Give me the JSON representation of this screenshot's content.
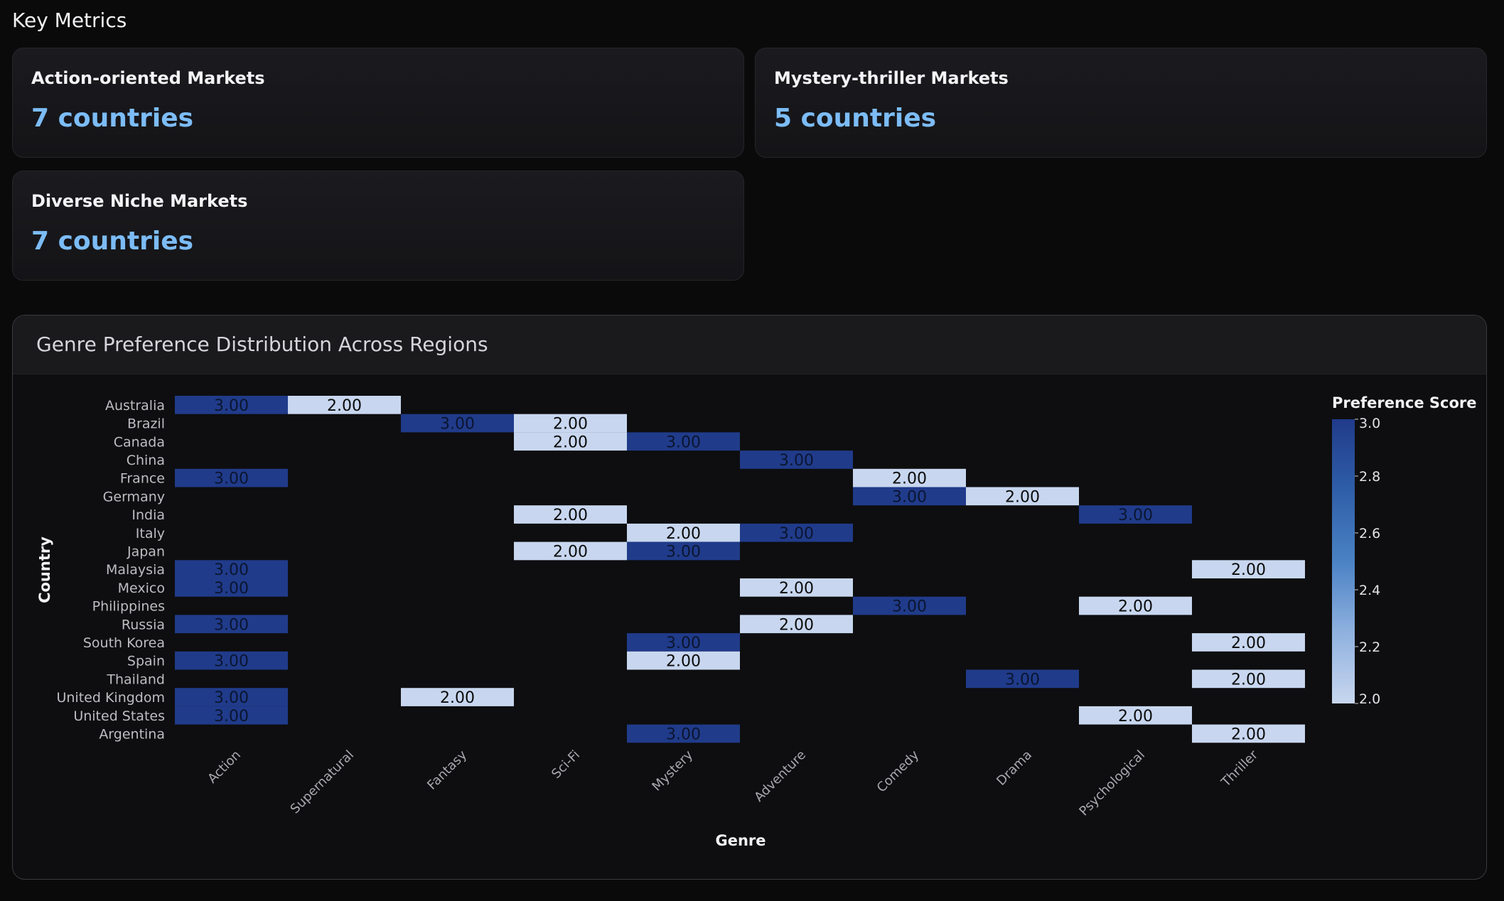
{
  "section": {
    "title": "Key Metrics"
  },
  "metrics": [
    {
      "label": "Action-oriented Markets",
      "value": "7 countries"
    },
    {
      "label": "Mystery-thriller Markets",
      "value": "5 countries"
    },
    {
      "label": "Diverse Niche Markets",
      "value": "7 countries"
    }
  ],
  "chart": {
    "panel_title": "Genre Preference Distribution Across Regions"
  },
  "colors": {
    "accent": "#7cbcf6",
    "scale_low": "#c8d7ef",
    "scale_high": "#203b8a"
  },
  "chart_data": {
    "type": "heatmap",
    "title": "Genre Preference Distribution Across Regions",
    "xlabel": "Genre",
    "ylabel": "Country",
    "colorbar_title": "Preference Score",
    "colorbar_range": [
      2.0,
      3.0
    ],
    "colorbar_ticks": [
      "3.0",
      "2.8",
      "2.6",
      "2.4",
      "2.2",
      "2.0"
    ],
    "x_categories": [
      "Action",
      "Supernatural",
      "Fantasy",
      "Sci-Fi",
      "Mystery",
      "Adventure",
      "Comedy",
      "Drama",
      "Psychological",
      "Thriller"
    ],
    "y_categories": [
      "Australia",
      "Brazil",
      "Canada",
      "China",
      "France",
      "Germany",
      "India",
      "Italy",
      "Japan",
      "Malaysia",
      "Mexico",
      "Philippines",
      "Russia",
      "South Korea",
      "Spain",
      "Thailand",
      "United Kingdom",
      "United States",
      "Argentina"
    ],
    "cells": [
      {
        "country": "Australia",
        "genre": "Action",
        "value": 3.0,
        "label": "3.00"
      },
      {
        "country": "Australia",
        "genre": "Supernatural",
        "value": 2.0,
        "label": "2.00"
      },
      {
        "country": "Brazil",
        "genre": "Fantasy",
        "value": 3.0,
        "label": "3.00"
      },
      {
        "country": "Brazil",
        "genre": "Sci-Fi",
        "value": 2.0,
        "label": "2.00"
      },
      {
        "country": "Canada",
        "genre": "Sci-Fi",
        "value": 2.0,
        "label": "2.00"
      },
      {
        "country": "Canada",
        "genre": "Mystery",
        "value": 3.0,
        "label": "3.00"
      },
      {
        "country": "China",
        "genre": "Adventure",
        "value": 3.0,
        "label": "3.00"
      },
      {
        "country": "France",
        "genre": "Action",
        "value": 3.0,
        "label": "3.00"
      },
      {
        "country": "France",
        "genre": "Comedy",
        "value": 2.0,
        "label": "2.00"
      },
      {
        "country": "Germany",
        "genre": "Comedy",
        "value": 3.0,
        "label": "3.00"
      },
      {
        "country": "Germany",
        "genre": "Drama",
        "value": 2.0,
        "label": "2.00"
      },
      {
        "country": "India",
        "genre": "Sci-Fi",
        "value": 2.0,
        "label": "2.00"
      },
      {
        "country": "India",
        "genre": "Psychological",
        "value": 3.0,
        "label": "3.00"
      },
      {
        "country": "Italy",
        "genre": "Mystery",
        "value": 2.0,
        "label": "2.00"
      },
      {
        "country": "Italy",
        "genre": "Adventure",
        "value": 3.0,
        "label": "3.00"
      },
      {
        "country": "Japan",
        "genre": "Sci-Fi",
        "value": 2.0,
        "label": "2.00"
      },
      {
        "country": "Japan",
        "genre": "Mystery",
        "value": 3.0,
        "label": "3.00"
      },
      {
        "country": "Malaysia",
        "genre": "Action",
        "value": 3.0,
        "label": "3.00"
      },
      {
        "country": "Malaysia",
        "genre": "Thriller",
        "value": 2.0,
        "label": "2.00"
      },
      {
        "country": "Mexico",
        "genre": "Action",
        "value": 3.0,
        "label": "3.00"
      },
      {
        "country": "Mexico",
        "genre": "Adventure",
        "value": 2.0,
        "label": "2.00"
      },
      {
        "country": "Philippines",
        "genre": "Comedy",
        "value": 3.0,
        "label": "3.00"
      },
      {
        "country": "Philippines",
        "genre": "Psychological",
        "value": 2.0,
        "label": "2.00"
      },
      {
        "country": "Russia",
        "genre": "Action",
        "value": 3.0,
        "label": "3.00"
      },
      {
        "country": "Russia",
        "genre": "Adventure",
        "value": 2.0,
        "label": "2.00"
      },
      {
        "country": "South Korea",
        "genre": "Mystery",
        "value": 3.0,
        "label": "3.00"
      },
      {
        "country": "South Korea",
        "genre": "Thriller",
        "value": 2.0,
        "label": "2.00"
      },
      {
        "country": "Spain",
        "genre": "Action",
        "value": 3.0,
        "label": "3.00"
      },
      {
        "country": "Spain",
        "genre": "Mystery",
        "value": 2.0,
        "label": "2.00"
      },
      {
        "country": "Thailand",
        "genre": "Drama",
        "value": 3.0,
        "label": "3.00"
      },
      {
        "country": "Thailand",
        "genre": "Thriller",
        "value": 2.0,
        "label": "2.00"
      },
      {
        "country": "United Kingdom",
        "genre": "Action",
        "value": 3.0,
        "label": "3.00"
      },
      {
        "country": "United Kingdom",
        "genre": "Fantasy",
        "value": 2.0,
        "label": "2.00"
      },
      {
        "country": "United States",
        "genre": "Action",
        "value": 3.0,
        "label": "3.00"
      },
      {
        "country": "United States",
        "genre": "Psychological",
        "value": 2.0,
        "label": "2.00"
      },
      {
        "country": "Argentina",
        "genre": "Mystery",
        "value": 3.0,
        "label": "3.00"
      },
      {
        "country": "Argentina",
        "genre": "Thriller",
        "value": 2.0,
        "label": "2.00"
      }
    ]
  }
}
